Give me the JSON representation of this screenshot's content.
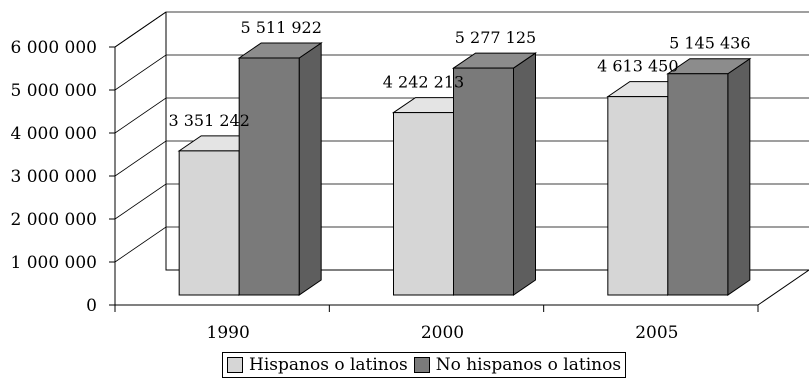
{
  "chart_data": {
    "type": "bar",
    "title": "",
    "xlabel": "",
    "ylabel": "",
    "categories": [
      "1990",
      "2000",
      "2005"
    ],
    "series": [
      {
        "name": "Hispanos o latinos",
        "values": [
          3351242,
          4242213,
          4613450
        ],
        "labels": [
          "3 351 242",
          "4 242 213",
          "4 613 450"
        ]
      },
      {
        "name": "No hispanos o latinos",
        "values": [
          5511922,
          5277125,
          5145436
        ],
        "labels": [
          "5 511 922",
          "5 277 125",
          "5 145 436"
        ]
      }
    ],
    "ylim": [
      0,
      6000000
    ],
    "yticks": [
      0,
      1000000,
      2000000,
      3000000,
      4000000,
      5000000,
      6000000
    ],
    "ytick_labels": [
      "0",
      "1 000 000",
      "2 000 000",
      "3 000 000",
      "4 000 000",
      "5 000 000",
      "6 000 000"
    ],
    "grid": true,
    "style": "3d",
    "legend_position": "bottom",
    "colors": {
      "Hispanos o latinos": "#d6d6d6",
      "No hispanos o latinos": "#7a7a7a"
    }
  }
}
